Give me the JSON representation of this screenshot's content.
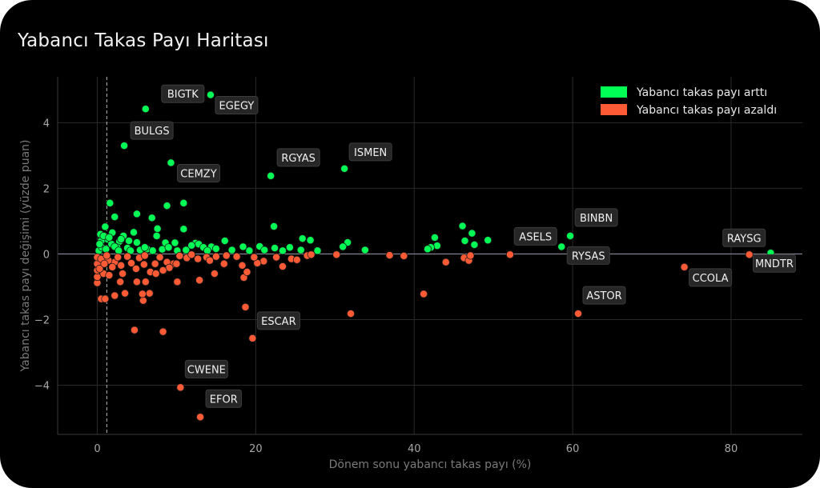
{
  "chart_data": {
    "type": "scatter",
    "title": "Yabancı Takas Payı Haritası",
    "xlabel": "Dönem sonu yabancı takas payı (%)",
    "ylabel": "Yabancı takas payı değişimi (yüzde puan)",
    "xlim": [
      -5,
      89
    ],
    "ylim": [
      -5.5,
      5.4
    ],
    "xticks": [
      0,
      20,
      40,
      60,
      80
    ],
    "yticks": [
      -4,
      -2,
      0,
      2,
      4
    ],
    "grid": true,
    "legend_position": "top-right",
    "reference_vline_x": 1.2,
    "colors": {
      "up": "#00ff55",
      "down": "#ff5a36"
    },
    "series": [
      {
        "name": "Yabancı takas payı arttı",
        "color": "#00ff55",
        "points": [
          [
            14.3,
            4.85
          ],
          [
            6.1,
            4.42
          ],
          [
            3.4,
            3.3
          ],
          [
            9.3,
            2.78
          ],
          [
            31.2,
            2.6
          ],
          [
            21.9,
            2.38
          ],
          [
            1.6,
            1.55
          ],
          [
            10.9,
            1.55
          ],
          [
            8.8,
            1.47
          ],
          [
            5.0,
            1.22
          ],
          [
            2.2,
            1.13
          ],
          [
            6.9,
            1.1
          ],
          [
            22.3,
            0.84
          ],
          [
            1.0,
            0.83
          ],
          [
            46.1,
            0.85
          ],
          [
            10.9,
            0.76
          ],
          [
            7.6,
            0.77
          ],
          [
            1.9,
            0.65
          ],
          [
            4.6,
            0.66
          ],
          [
            47.3,
            0.63
          ],
          [
            59.7,
            0.55
          ],
          [
            3.3,
            0.55
          ],
          [
            7.5,
            0.55
          ],
          [
            42.6,
            0.5
          ],
          [
            25.9,
            0.47
          ],
          [
            26.9,
            0.42
          ],
          [
            49.3,
            0.42
          ],
          [
            46.4,
            0.4
          ],
          [
            16.1,
            0.4
          ],
          [
            1.3,
            0.45
          ],
          [
            0.5,
            0.4
          ],
          [
            2.8,
            0.38
          ],
          [
            8.6,
            0.34
          ],
          [
            9.8,
            0.34
          ],
          [
            31.6,
            0.35
          ],
          [
            5.0,
            0.35
          ],
          [
            12.4,
            0.33
          ],
          [
            12.8,
            0.3
          ],
          [
            11.9,
            0.26
          ],
          [
            47.6,
            0.28
          ],
          [
            42.9,
            0.25
          ],
          [
            58.6,
            0.22
          ],
          [
            31.0,
            0.22
          ],
          [
            20.5,
            0.23
          ],
          [
            18.4,
            0.22
          ],
          [
            42.1,
            0.2
          ],
          [
            41.7,
            0.15
          ],
          [
            13.4,
            0.2
          ],
          [
            14.4,
            0.22
          ],
          [
            24.3,
            0.2
          ],
          [
            22.4,
            0.18
          ],
          [
            2.5,
            0.2
          ],
          [
            6.3,
            0.15
          ],
          [
            15.0,
            0.16
          ],
          [
            33.8,
            0.12
          ],
          [
            85.0,
            0.03
          ],
          [
            0.2,
            0.1
          ],
          [
            0.6,
            0.2
          ],
          [
            1.8,
            0.3
          ],
          [
            2.2,
            0.22
          ],
          [
            3.8,
            0.18
          ],
          [
            4.2,
            0.1
          ],
          [
            5.4,
            0.12
          ],
          [
            7.0,
            0.1
          ],
          [
            8.2,
            0.14
          ],
          [
            10.1,
            0.1
          ],
          [
            11.2,
            0.12
          ],
          [
            13.9,
            0.1
          ],
          [
            17.0,
            0.12
          ],
          [
            19.2,
            0.1
          ],
          [
            21.1,
            0.12
          ],
          [
            23.4,
            0.1
          ],
          [
            25.7,
            0.12
          ],
          [
            27.8,
            0.1
          ],
          [
            0.4,
            0.6
          ],
          [
            0.8,
            0.55
          ],
          [
            1.5,
            0.5
          ],
          [
            3.0,
            0.45
          ],
          [
            4.0,
            0.4
          ],
          [
            6.0,
            0.2
          ],
          [
            9.0,
            0.2
          ],
          [
            0.3,
            0.3
          ],
          [
            1.1,
            0.15
          ],
          [
            2.7,
            0.1
          ]
        ]
      },
      {
        "name": "Yabancı takas payı azaldı",
        "color": "#ff5a36",
        "points": [
          [
            13.0,
            -4.97
          ],
          [
            10.5,
            -4.07
          ],
          [
            19.6,
            -2.57
          ],
          [
            4.7,
            -2.32
          ],
          [
            8.3,
            -2.37
          ],
          [
            60.7,
            -1.82
          ],
          [
            32.0,
            -1.82
          ],
          [
            18.7,
            -1.62
          ],
          [
            41.2,
            -1.22
          ],
          [
            0.5,
            -1.37
          ],
          [
            1.0,
            -1.37
          ],
          [
            2.2,
            -1.27
          ],
          [
            3.5,
            -1.2
          ],
          [
            5.8,
            -1.42
          ],
          [
            6.6,
            -1.2
          ],
          [
            5.7,
            -1.22
          ],
          [
            74.1,
            -0.4
          ],
          [
            82.3,
            -0.02
          ],
          [
            52.1,
            -0.02
          ],
          [
            18.5,
            -0.72
          ],
          [
            18.9,
            -0.55
          ],
          [
            14.8,
            -0.6
          ],
          [
            10.1,
            -0.85
          ],
          [
            12.9,
            -0.8
          ],
          [
            5.0,
            -0.85
          ],
          [
            6.1,
            -0.85
          ],
          [
            2.9,
            -0.85
          ],
          [
            0.0,
            -0.88
          ],
          [
            0.0,
            -0.7
          ],
          [
            0.0,
            -0.5
          ],
          [
            0.0,
            -0.3
          ],
          [
            0.0,
            -0.1
          ],
          [
            46.3,
            -0.12
          ],
          [
            46.9,
            -0.2
          ],
          [
            44.0,
            -0.25
          ],
          [
            36.9,
            -0.04
          ],
          [
            38.7,
            -0.06
          ],
          [
            30.2,
            -0.02
          ],
          [
            26.5,
            -0.05
          ],
          [
            24.5,
            -0.15
          ],
          [
            25.2,
            -0.18
          ],
          [
            23.4,
            -0.38
          ],
          [
            21.0,
            -0.22
          ],
          [
            20.2,
            -0.28
          ],
          [
            18.3,
            -0.35
          ],
          [
            17.6,
            -0.08
          ],
          [
            16.3,
            -0.05
          ],
          [
            15.0,
            -0.08
          ],
          [
            22.6,
            -0.1
          ],
          [
            9.6,
            -0.3
          ],
          [
            8.8,
            -0.25
          ],
          [
            7.3,
            -0.3
          ],
          [
            4.3,
            -0.28
          ],
          [
            2.2,
            -0.25
          ],
          [
            1.4,
            -0.2
          ],
          [
            0.8,
            -0.6
          ],
          [
            1.5,
            -0.65
          ],
          [
            3.2,
            -0.6
          ],
          [
            6.7,
            -0.55
          ],
          [
            7.4,
            -0.6
          ],
          [
            9.1,
            -0.42
          ],
          [
            11.3,
            -0.12
          ],
          [
            12.7,
            -0.15
          ],
          [
            13.8,
            -0.1
          ],
          [
            0.5,
            -0.15
          ],
          [
            1.2,
            -0.05
          ],
          [
            2.6,
            -0.1
          ],
          [
            3.8,
            -0.08
          ],
          [
            5.3,
            -0.12
          ],
          [
            6.0,
            -0.05
          ],
          [
            7.9,
            -0.1
          ],
          [
            10.4,
            -0.06
          ],
          [
            11.9,
            -0.02
          ],
          [
            14.2,
            -0.2
          ],
          [
            0.3,
            -0.45
          ],
          [
            1.9,
            -0.4
          ],
          [
            4.9,
            -0.45
          ],
          [
            8.3,
            -0.5
          ],
          [
            0.9,
            -0.3
          ],
          [
            3.0,
            -0.35
          ],
          [
            5.9,
            -0.32
          ],
          [
            10.0,
            -0.3
          ],
          [
            16.0,
            -0.3
          ],
          [
            19.8,
            -0.1
          ],
          [
            27.0,
            -0.02
          ],
          [
            47.1,
            -0.05
          ]
        ]
      }
    ],
    "annotations": [
      {
        "label": "BIGTK",
        "x": 6.1,
        "y": 4.42,
        "dx": 20,
        "dy": -30
      },
      {
        "label": "EGEGY",
        "x": 14.3,
        "y": 4.85,
        "dx": 6,
        "dy": 2
      },
      {
        "label": "BULGS",
        "x": 3.4,
        "y": 3.3,
        "dx": 8,
        "dy": -30
      },
      {
        "label": "CEMZY",
        "x": 9.3,
        "y": 2.78,
        "dx": 8,
        "dy": 2
      },
      {
        "label": "RGYAS",
        "x": 21.9,
        "y": 2.38,
        "dx": 8,
        "dy": -34
      },
      {
        "label": "ISMEN",
        "x": 31.2,
        "y": 2.6,
        "dx": 6,
        "dy": -32
      },
      {
        "label": "BINBN",
        "x": 59.7,
        "y": 0.55,
        "dx": 6,
        "dy": -34
      },
      {
        "label": "ASELS",
        "x": 58.6,
        "y": 0.22,
        "dx": -59,
        "dy": -24
      },
      {
        "label": "RYSAS",
        "x": 58.6,
        "y": 0.22,
        "dx": 7,
        "dy": 0
      },
      {
        "label": "RAYSG",
        "x": 82.3,
        "y": -0.02,
        "dx": -33,
        "dy": -32
      },
      {
        "label": "MNDTR",
        "x": 85.0,
        "y": 0.03,
        "dx": -22,
        "dy": 2
      },
      {
        "label": "CCOLA",
        "x": 74.1,
        "y": -0.4,
        "dx": 6,
        "dy": 2
      },
      {
        "label": "ASTOR",
        "x": 60.7,
        "y": -1.82,
        "dx": 6,
        "dy": -34
      },
      {
        "label": "ESCAR",
        "x": 19.6,
        "y": -2.57,
        "dx": 6,
        "dy": -33
      },
      {
        "label": "CWENE",
        "x": 10.5,
        "y": -4.07,
        "dx": 6,
        "dy": -34
      },
      {
        "label": "EFOR",
        "x": 13.0,
        "y": -4.97,
        "dx": 7,
        "dy": -34
      }
    ]
  }
}
